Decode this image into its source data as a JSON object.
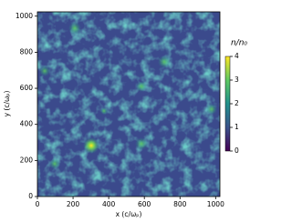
{
  "chart_data": {
    "type": "heatmap",
    "xlabel": "x (c/ωₚ)",
    "ylabel": "y (c/ωₚ)",
    "xlim": [
      0,
      1024
    ],
    "ylim": [
      0,
      1024
    ],
    "xticks": [
      0,
      200,
      400,
      600,
      800,
      1000
    ],
    "yticks": [
      0,
      200,
      400,
      600,
      800,
      1000
    ],
    "colorbar": {
      "label": "n/n₀",
      "lim": [
        0,
        4
      ],
      "ticks": [
        0,
        1,
        2,
        3,
        4
      ]
    }
  }
}
